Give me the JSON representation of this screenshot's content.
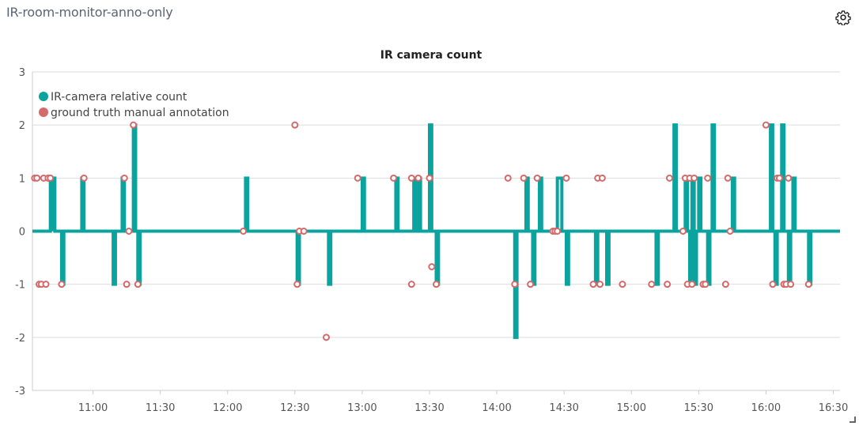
{
  "panel": {
    "title": "IR-room-monitor-anno-only",
    "settings_icon": "gear-icon"
  },
  "chart_data": {
    "type": "line",
    "title": "IR camera count",
    "x_ticks": [
      "11:00",
      "11:30",
      "12:00",
      "12:30",
      "13:00",
      "13:30",
      "14:00",
      "14:30",
      "15:00",
      "15:30",
      "16:00",
      "16:30"
    ],
    "y_ticks": [
      "-3",
      "-2",
      "-1",
      "0",
      "1",
      "2",
      "3"
    ],
    "xlim": [
      "10:33",
      "16:33"
    ],
    "ylim": [
      -3,
      3
    ],
    "grid": "horizontal",
    "legend_position": "top-left",
    "series": [
      {
        "name": "IR-camera relative count",
        "kind": "step-line",
        "color": "#0aa39e",
        "points": [
          [
            "10:33",
            0
          ],
          [
            "10:41",
            1
          ],
          [
            "10:42",
            0
          ],
          [
            "10:42",
            1
          ],
          [
            "10:43",
            0
          ],
          [
            "10:46",
            -1
          ],
          [
            "10:47",
            0
          ],
          [
            "10:55",
            1
          ],
          [
            "10:56",
            0
          ],
          [
            "11:09",
            -1
          ],
          [
            "11:10",
            0
          ],
          [
            "11:13",
            1
          ],
          [
            "11:14",
            0
          ],
          [
            "11:18",
            2
          ],
          [
            "11:19",
            0
          ],
          [
            "11:20",
            -1
          ],
          [
            "11:21",
            0
          ],
          [
            "12:08",
            1
          ],
          [
            "12:09",
            0
          ],
          [
            "12:31",
            -1
          ],
          [
            "12:32",
            0
          ],
          [
            "12:45",
            -1
          ],
          [
            "12:46",
            0
          ],
          [
            "13:00",
            1
          ],
          [
            "13:01",
            0
          ],
          [
            "13:15",
            1
          ],
          [
            "13:16",
            0
          ],
          [
            "13:23",
            1
          ],
          [
            "13:24",
            0
          ],
          [
            "13:25",
            1
          ],
          [
            "13:26",
            0
          ],
          [
            "13:30",
            2
          ],
          [
            "13:31",
            0
          ],
          [
            "13:33",
            -1
          ],
          [
            "13:34",
            0
          ],
          [
            "14:08",
            -2
          ],
          [
            "14:09",
            0
          ],
          [
            "14:13",
            1
          ],
          [
            "14:14",
            0
          ],
          [
            "14:16",
            -1
          ],
          [
            "14:17",
            0
          ],
          [
            "14:19",
            1
          ],
          [
            "14:20",
            0
          ],
          [
            "14:27",
            1
          ],
          [
            "14:29",
            0
          ],
          [
            "14:31",
            -1
          ],
          [
            "14:32",
            0
          ],
          [
            "14:44",
            -1
          ],
          [
            "14:45",
            0
          ],
          [
            "14:49",
            -1
          ],
          [
            "14:50",
            0
          ],
          [
            "15:11",
            -1
          ],
          [
            "15:12",
            0
          ],
          [
            "15:19",
            2
          ],
          [
            "15:20",
            0
          ],
          [
            "15:24",
            1
          ],
          [
            "15:25",
            0
          ],
          [
            "15:26",
            -1
          ],
          [
            "15:27",
            1
          ],
          [
            "15:28",
            -1
          ],
          [
            "15:29",
            0
          ],
          [
            "15:30",
            1
          ],
          [
            "15:31",
            0
          ],
          [
            "15:34",
            -1
          ],
          [
            "15:35",
            0
          ],
          [
            "15:36",
            2
          ],
          [
            "15:37",
            0
          ],
          [
            "15:45",
            1
          ],
          [
            "15:46",
            0
          ],
          [
            "16:02",
            2
          ],
          [
            "16:03",
            0
          ],
          [
            "16:04",
            -1
          ],
          [
            "16:05",
            0
          ],
          [
            "16:07",
            2
          ],
          [
            "16:08",
            0
          ],
          [
            "16:10",
            -1
          ],
          [
            "16:11",
            0
          ],
          [
            "16:12",
            1
          ],
          [
            "16:13",
            0
          ],
          [
            "16:19",
            -1
          ],
          [
            "16:20",
            0
          ],
          [
            "16:33",
            0
          ]
        ]
      },
      {
        "name": "ground truth manual annotation",
        "kind": "hollow-markers",
        "color": "#d46a6a",
        "points": [
          [
            "10:34",
            1
          ],
          [
            "10:35",
            1
          ],
          [
            "10:36",
            -1
          ],
          [
            "10:37",
            -1
          ],
          [
            "10:38",
            1
          ],
          [
            "10:39",
            -1
          ],
          [
            "10:40",
            1
          ],
          [
            "10:41",
            1
          ],
          [
            "10:46",
            -1
          ],
          [
            "10:56",
            1
          ],
          [
            "11:14",
            1
          ],
          [
            "11:15",
            -1
          ],
          [
            "11:16",
            0
          ],
          [
            "11:18",
            2
          ],
          [
            "11:20",
            -1
          ],
          [
            "12:07",
            0
          ],
          [
            "12:30",
            2
          ],
          [
            "12:31",
            -1
          ],
          [
            "12:32",
            0
          ],
          [
            "12:34",
            0
          ],
          [
            "12:44",
            -2
          ],
          [
            "12:58",
            1
          ],
          [
            "13:14",
            1
          ],
          [
            "13:22",
            -1
          ],
          [
            "13:22",
            1
          ],
          [
            "13:25",
            1
          ],
          [
            "13:30",
            1
          ],
          [
            "13:31",
            -0.67
          ],
          [
            "13:33",
            -1
          ],
          [
            "14:05",
            1
          ],
          [
            "14:08",
            -1
          ],
          [
            "14:12",
            1
          ],
          [
            "14:15",
            -1
          ],
          [
            "14:18",
            1
          ],
          [
            "14:25",
            0
          ],
          [
            "14:26",
            0
          ],
          [
            "14:27",
            0
          ],
          [
            "14:31",
            1
          ],
          [
            "14:43",
            -1
          ],
          [
            "14:45",
            1
          ],
          [
            "14:46",
            -1
          ],
          [
            "14:47",
            1
          ],
          [
            "14:56",
            -1
          ],
          [
            "15:09",
            -1
          ],
          [
            "15:16",
            -1
          ],
          [
            "15:17",
            1
          ],
          [
            "15:23",
            0
          ],
          [
            "15:24",
            1
          ],
          [
            "15:25",
            -1
          ],
          [
            "15:26",
            1
          ],
          [
            "15:27",
            -1
          ],
          [
            "15:28",
            1
          ],
          [
            "15:32",
            -1
          ],
          [
            "15:33",
            -1
          ],
          [
            "15:34",
            1
          ],
          [
            "15:42",
            -1
          ],
          [
            "15:43",
            1
          ],
          [
            "15:44",
            0
          ],
          [
            "16:00",
            2
          ],
          [
            "16:03",
            -1
          ],
          [
            "16:05",
            1
          ],
          [
            "16:06",
            1
          ],
          [
            "16:08",
            -1
          ],
          [
            "16:09",
            -1
          ],
          [
            "16:10",
            1
          ],
          [
            "16:11",
            -1
          ],
          [
            "16:19",
            -1
          ]
        ]
      }
    ]
  }
}
